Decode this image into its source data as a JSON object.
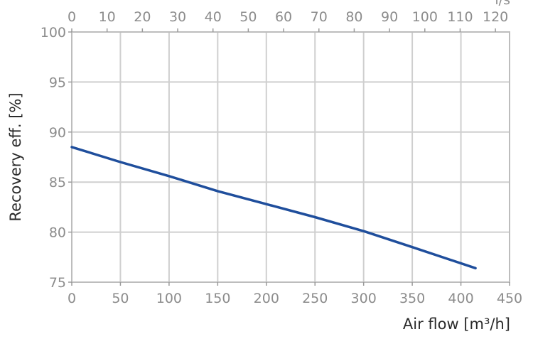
{
  "chart_data": {
    "type": "line",
    "title": "",
    "xlabel": "Air flow [m³/h]",
    "ylabel": "Recovery eff. [%]",
    "xlim": [
      0,
      450
    ],
    "ylim": [
      75,
      100
    ],
    "x_ticks": [
      0,
      50,
      100,
      150,
      200,
      250,
      300,
      350,
      400,
      450
    ],
    "y_ticks": [
      75,
      80,
      85,
      90,
      95,
      100
    ],
    "secondary_x_ticks": [
      0,
      10,
      20,
      30,
      40,
      50,
      60,
      70,
      80,
      90,
      100,
      110,
      120
    ],
    "secondary_xlim": [
      0,
      124
    ],
    "secondary_xlabel_fragment": "l/s",
    "grid": true,
    "legend": "none",
    "colors": {
      "line": "#1f4e9c",
      "grid": "#cfcfcf"
    },
    "series": [
      {
        "x": [
          0,
          50,
          100,
          150,
          200,
          250,
          300,
          350,
          415
        ],
        "values": [
          88.5,
          87.0,
          85.6,
          84.1,
          82.8,
          81.5,
          80.1,
          78.5,
          76.4
        ]
      }
    ]
  }
}
